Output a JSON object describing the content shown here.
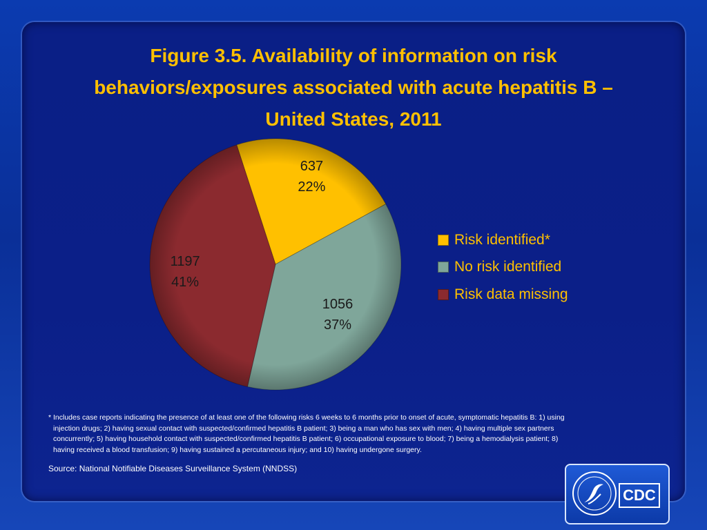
{
  "title": "Figure 3.5. Availability of information on risk behaviors/exposures associated with acute hepatitis B — United States, 2011",
  "title_lines": [
    "Figure 3.5. Availability of information on risk",
    "behaviors/exposures associated with acute hepatitis B –",
    "United States, 2011"
  ],
  "chart_data": {
    "type": "pie",
    "title": "Figure 3.5. Availability of information on risk behaviors/exposures associated with acute hepatitis B — United States, 2011",
    "legend_position": "right",
    "slices": [
      {
        "label": "Risk identified*",
        "value": 637,
        "percent": "22%",
        "color": "#ffc000"
      },
      {
        "label": "No risk identified",
        "value": 1056,
        "percent": "37%",
        "color": "#7fa69a"
      },
      {
        "label": "Risk data missing",
        "value": 1197,
        "percent": "41%",
        "color": "#8b2a2f"
      }
    ]
  },
  "footnote": {
    "lines": [
      "* Includes case reports indicating the presence of at least one of the following risks 6 weeks to 6 months prior to onset of acute, symptomatic hepatitis B:  1) using",
      "injection drugs; 2) having sexual contact with suspected/confirmed hepatitis B patient; 3) being a man who has sex with men; 4) having multiple sex partners",
      "concurrently; 5) having household contact with suspected/confirmed hepatitis B patient; 6) occupational exposure to blood; 7) being a hemodialysis patient; 8)",
      "having received a blood transfusion; 9) having sustained a percutaneous injury; and 10) having undergone surgery."
    ]
  },
  "source": "Source: National Notifiable Diseases Surveillance System (NNDSS)",
  "logo": {
    "text": "CDC",
    "icon": "hhs-eagle-icon"
  }
}
